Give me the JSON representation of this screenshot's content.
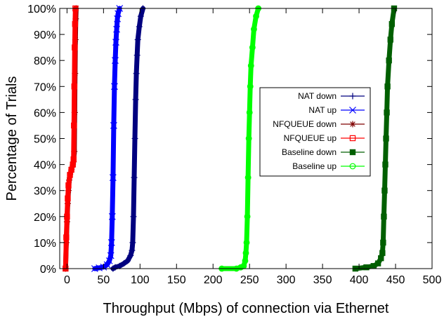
{
  "chart_data": {
    "type": "line",
    "xlabel": "Throughput (Mbps) of connection via Ethernet",
    "ylabel": "Percentage of Trials",
    "xlim": [
      -10,
      500
    ],
    "ylim": [
      0,
      100
    ],
    "xticks": [
      0,
      50,
      100,
      150,
      200,
      250,
      300,
      350,
      400,
      450,
      500
    ],
    "yticks": [
      0,
      10,
      20,
      30,
      40,
      50,
      60,
      70,
      80,
      90,
      100
    ],
    "ytick_suffix": "%",
    "grid": false,
    "legend_position": "center-right",
    "series": [
      {
        "name": "NAT down",
        "color": "#00007f",
        "marker": "plus",
        "values": [
          [
            63,
            0
          ],
          [
            66,
            0.5
          ],
          [
            72,
            1
          ],
          [
            78,
            2
          ],
          [
            83,
            3
          ],
          [
            87,
            5
          ],
          [
            89,
            7
          ],
          [
            90,
            10
          ],
          [
            91,
            20
          ],
          [
            92,
            35
          ],
          [
            93,
            50
          ],
          [
            94,
            65
          ],
          [
            95,
            75
          ],
          [
            96,
            82
          ],
          [
            97,
            88
          ],
          [
            99,
            93
          ],
          [
            101,
            97
          ],
          [
            104,
            100
          ]
        ]
      },
      {
        "name": "NAT up",
        "color": "#0000ff",
        "marker": "x",
        "values": [
          [
            38,
            0
          ],
          [
            44,
            0.3
          ],
          [
            50,
            0.6
          ],
          [
            55,
            1.5
          ],
          [
            58,
            3
          ],
          [
            60,
            5
          ],
          [
            61,
            10
          ],
          [
            62,
            20
          ],
          [
            63,
            35
          ],
          [
            64,
            55
          ],
          [
            65,
            70
          ],
          [
            66,
            80
          ],
          [
            67,
            87
          ],
          [
            68,
            92
          ],
          [
            69,
            96
          ],
          [
            70,
            98
          ],
          [
            72,
            100
          ]
        ]
      },
      {
        "name": "NFQUEUE down",
        "color": "#7f0000",
        "marker": "asterisk",
        "values": [
          [
            -2,
            0
          ],
          [
            -1,
            10
          ],
          [
            0,
            18
          ],
          [
            1,
            25
          ],
          [
            2,
            30
          ],
          [
            3,
            34
          ],
          [
            5,
            37
          ],
          [
            7,
            39
          ],
          [
            9,
            41
          ],
          [
            10,
            45
          ],
          [
            10.5,
            60
          ],
          [
            11,
            75
          ],
          [
            11.5,
            88
          ],
          [
            12,
            96
          ],
          [
            12.5,
            100
          ]
        ]
      },
      {
        "name": "NFQUEUE up",
        "color": "#ff0000",
        "marker": "square-open",
        "values": [
          [
            -2,
            0
          ],
          [
            -1,
            12
          ],
          [
            0,
            20
          ],
          [
            1,
            27
          ],
          [
            2,
            32
          ],
          [
            4,
            36
          ],
          [
            6,
            38
          ],
          [
            8,
            40
          ],
          [
            9,
            42
          ],
          [
            9.5,
            55
          ],
          [
            10,
            70
          ],
          [
            10.5,
            85
          ],
          [
            11,
            94
          ],
          [
            11.5,
            100
          ]
        ]
      },
      {
        "name": "Baseline down",
        "color": "#005f00",
        "marker": "square-filled",
        "values": [
          [
            395,
            0
          ],
          [
            410,
            0.5
          ],
          [
            420,
            1
          ],
          [
            426,
            2
          ],
          [
            430,
            4
          ],
          [
            432,
            6
          ],
          [
            433,
            10
          ],
          [
            434,
            20
          ],
          [
            435,
            30
          ],
          [
            436,
            40
          ],
          [
            437,
            50
          ],
          [
            438,
            60
          ],
          [
            439,
            70
          ],
          [
            441,
            80
          ],
          [
            443,
            88
          ],
          [
            445,
            94
          ],
          [
            448,
            100
          ]
        ]
      },
      {
        "name": "Baseline up",
        "color": "#00ff00",
        "marker": "circle-open",
        "values": [
          [
            212,
            0
          ],
          [
            232,
            0
          ],
          [
            238,
            0.5
          ],
          [
            242,
            1
          ],
          [
            244,
            3
          ],
          [
            245,
            6
          ],
          [
            246,
            10
          ],
          [
            247,
            20
          ],
          [
            248,
            35
          ],
          [
            249,
            50
          ],
          [
            250,
            60
          ],
          [
            251,
            70
          ],
          [
            252,
            78
          ],
          [
            254,
            85
          ],
          [
            256,
            92
          ],
          [
            259,
            97
          ],
          [
            262,
            100
          ]
        ]
      }
    ]
  }
}
